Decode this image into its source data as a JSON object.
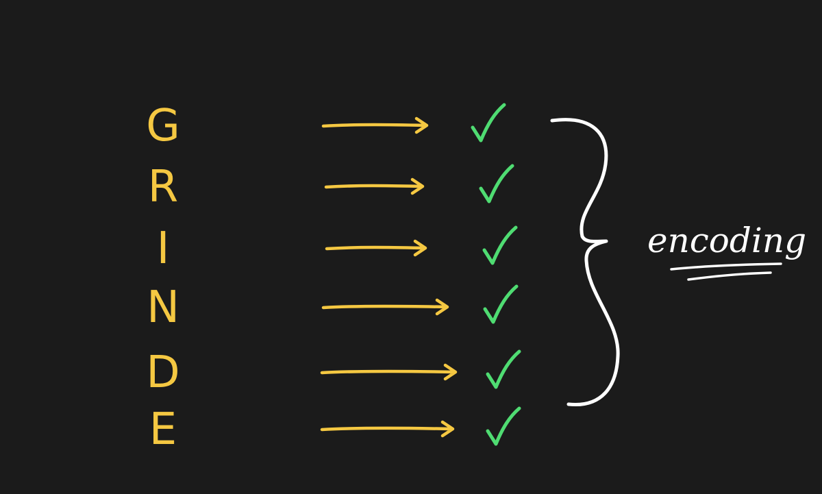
{
  "colors": {
    "background": "#1b1b1b",
    "letter": "#f5c842",
    "arrow": "#f5c842",
    "check": "#4fdc72",
    "brace": "#ffffff",
    "label": "#ffffff"
  },
  "rows": [
    {
      "letter": "G",
      "status": "check"
    },
    {
      "letter": "R",
      "status": "check"
    },
    {
      "letter": "I",
      "status": "check"
    },
    {
      "letter": "N",
      "status": "check"
    },
    {
      "letter": "D",
      "status": "check"
    },
    {
      "letter": "E",
      "status": "check"
    }
  ],
  "group_label": "encoding"
}
